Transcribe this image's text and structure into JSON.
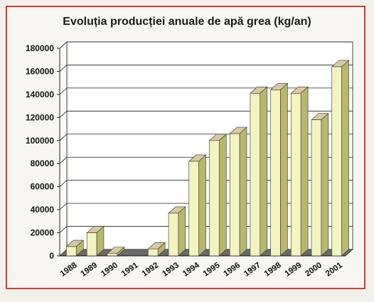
{
  "chart_data": {
    "type": "bar",
    "title": "Evoluția producției anuale de apă grea (kg/an)",
    "categories": [
      "1988",
      "1989",
      "1990",
      "1991",
      "1992",
      "1993",
      "1994",
      "1995",
      "1996",
      "1997",
      "1998",
      "1999",
      "2000",
      "2001"
    ],
    "values": [
      8000,
      20000,
      2000,
      0,
      6000,
      37000,
      82000,
      100000,
      106000,
      141000,
      144000,
      141000,
      118000,
      164000
    ],
    "ylim": [
      0,
      180000
    ],
    "yticks": [
      "0",
      "20000",
      "40000",
      "60000",
      "80000",
      "100000",
      "120000",
      "140000",
      "160000",
      "180000"
    ],
    "grid": true,
    "colors": {
      "bar_front": "#f4f4c2",
      "bar_side": "#b8b86a",
      "bar_top": "#d8c9a2",
      "floor": "#6a6a6a",
      "grid": "#222222",
      "frame": "#e03a2a"
    }
  }
}
